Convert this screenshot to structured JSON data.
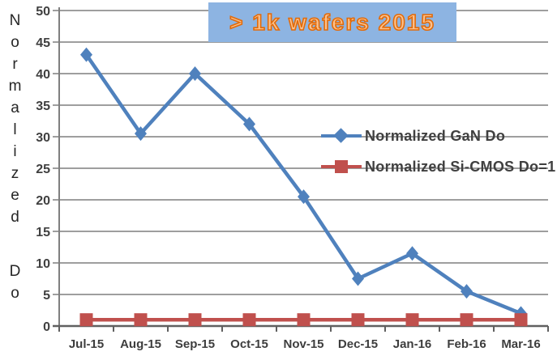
{
  "banner": {
    "text": "> 1k wafers 2015",
    "bg_color": "#8db4e2",
    "text_color": "#fbc18d",
    "outline_color": "#e26b0a"
  },
  "chart_data": {
    "type": "line",
    "title": "",
    "xlabel": "",
    "ylabel": "Normalized Do",
    "categories": [
      "Jul-15",
      "Aug-15",
      "Sep-15",
      "Oct-15",
      "Nov-15",
      "Dec-15",
      "Jan-16",
      "Feb-16",
      "Mar-16"
    ],
    "series": [
      {
        "name": "Normalized GaN Do",
        "color": "#4f81bd",
        "marker": "diamond",
        "values": [
          43,
          30.5,
          40,
          32,
          20.5,
          7.5,
          11.5,
          5.5,
          2
        ]
      },
      {
        "name": "Normalized Si-CMOS Do=1",
        "color": "#c0504d",
        "marker": "square",
        "values": [
          1,
          1,
          1,
          1,
          1,
          1,
          1,
          1,
          1
        ]
      }
    ],
    "ylim": [
      0,
      50
    ],
    "yticks": [
      0,
      5,
      10,
      15,
      20,
      25,
      30,
      35,
      40,
      45,
      50
    ],
    "grid": true,
    "legend_position": "middle-right",
    "colors": {
      "gridline": "#7f7f7f",
      "axis": "#606060",
      "tick_label": "#404040"
    }
  }
}
